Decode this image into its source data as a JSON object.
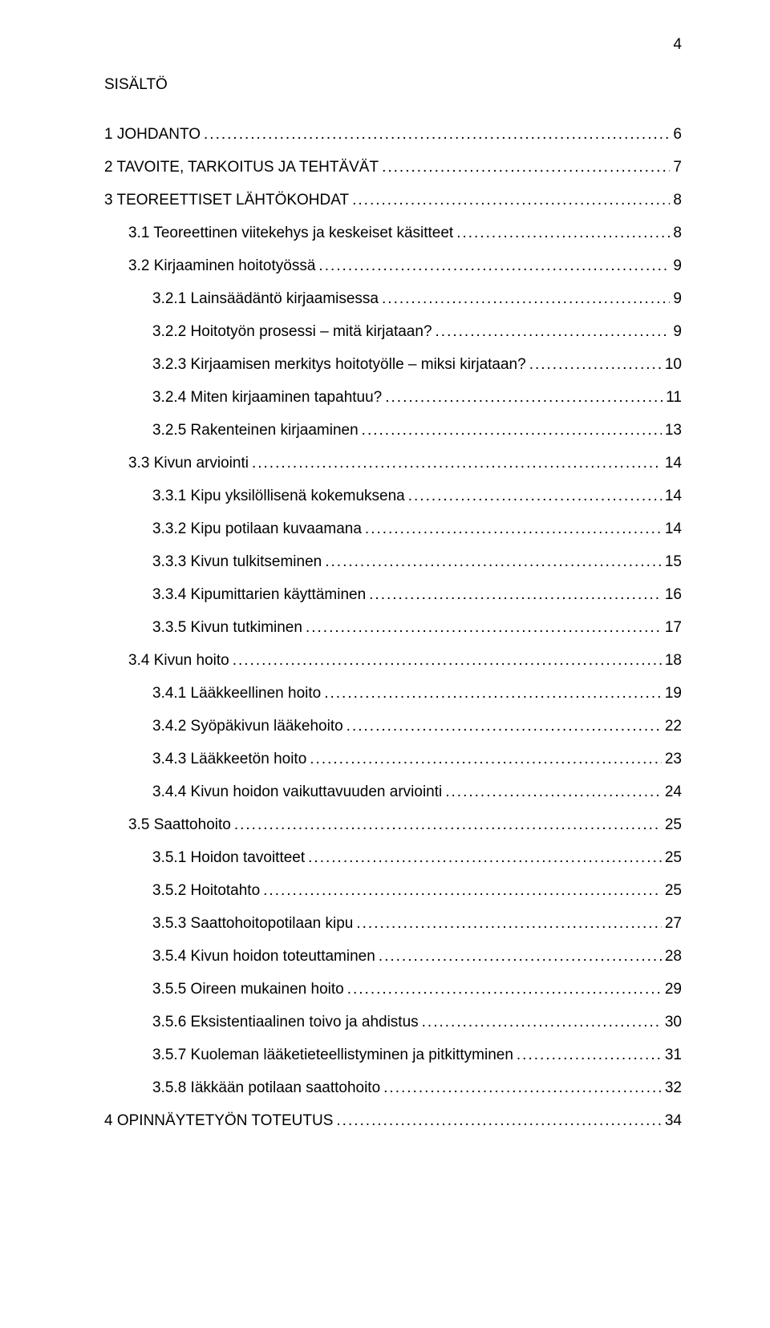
{
  "page_number": "4",
  "title": "SISÄLTÖ",
  "typography": {
    "font_family": "Arial",
    "font_size_pt": 14,
    "text_color": "#000000",
    "background_color": "#ffffff"
  },
  "toc": [
    {
      "label": "1 JOHDANTO",
      "page": "6",
      "indent": 0,
      "gap_before": true
    },
    {
      "label": "2 TAVOITE, TARKOITUS JA TEHTÄVÄT",
      "page": "7",
      "indent": 0,
      "gap_before": true
    },
    {
      "label": "3 TEOREETTISET LÄHTÖKOHDAT",
      "page": "8",
      "indent": 0,
      "gap_before": true
    },
    {
      "label": "3.1 Teoreettinen viitekehys ja keskeiset käsitteet",
      "page": "8",
      "indent": 1,
      "gap_before": false
    },
    {
      "label": "3.2 Kirjaaminen hoitotyössä",
      "page": "9",
      "indent": 1,
      "gap_before": false
    },
    {
      "label": "3.2.1 Lainsäädäntö kirjaamisessa",
      "page": "9",
      "indent": 2,
      "gap_before": false
    },
    {
      "label": "3.2.2 Hoitotyön prosessi – mitä kirjataan?",
      "page": "9",
      "indent": 2,
      "gap_before": false
    },
    {
      "label": "3.2.3 Kirjaamisen merkitys hoitotyölle – miksi kirjataan?",
      "page": "10",
      "indent": 2,
      "gap_before": false
    },
    {
      "label": "3.2.4 Miten kirjaaminen tapahtuu?",
      "page": "11",
      "indent": 2,
      "gap_before": false
    },
    {
      "label": "3.2.5 Rakenteinen kirjaaminen",
      "page": "13",
      "indent": 2,
      "gap_before": false
    },
    {
      "label": "3.3 Kivun arviointi",
      "page": "14",
      "indent": 1,
      "gap_before": false
    },
    {
      "label": "3.3.1 Kipu yksilöllisenä kokemuksena",
      "page": "14",
      "indent": 2,
      "gap_before": false
    },
    {
      "label": "3.3.2 Kipu potilaan kuvaamana",
      "page": "14",
      "indent": 2,
      "gap_before": false
    },
    {
      "label": "3.3.3 Kivun tulkitseminen",
      "page": "15",
      "indent": 2,
      "gap_before": false
    },
    {
      "label": "3.3.4 Kipumittarien käyttäminen",
      "page": "16",
      "indent": 2,
      "gap_before": false
    },
    {
      "label": "3.3.5 Kivun tutkiminen",
      "page": "17",
      "indent": 2,
      "gap_before": false
    },
    {
      "label": "3.4 Kivun hoito",
      "page": "18",
      "indent": 1,
      "gap_before": false
    },
    {
      "label": "3.4.1 Lääkkeellinen hoito",
      "page": "19",
      "indent": 2,
      "gap_before": false
    },
    {
      "label": "3.4.2 Syöpäkivun lääkehoito",
      "page": "22",
      "indent": 2,
      "gap_before": false
    },
    {
      "label": "3.4.3 Lääkkeetön hoito",
      "page": "23",
      "indent": 2,
      "gap_before": false
    },
    {
      "label": "3.4.4 Kivun hoidon vaikuttavuuden arviointi",
      "page": "24",
      "indent": 2,
      "gap_before": false
    },
    {
      "label": "3.5 Saattohoito",
      "page": "25",
      "indent": 1,
      "gap_before": false
    },
    {
      "label": "3.5.1 Hoidon tavoitteet",
      "page": "25",
      "indent": 2,
      "gap_before": false
    },
    {
      "label": "3.5.2 Hoitotahto",
      "page": "25",
      "indent": 2,
      "gap_before": false
    },
    {
      "label": "3.5.3 Saattohoitopotilaan kipu",
      "page": "27",
      "indent": 2,
      "gap_before": false
    },
    {
      "label": "3.5.4 Kivun hoidon toteuttaminen",
      "page": "28",
      "indent": 2,
      "gap_before": false
    },
    {
      "label": "3.5.5 Oireen mukainen hoito",
      "page": "29",
      "indent": 2,
      "gap_before": false
    },
    {
      "label": "3.5.6 Eksistentiaalinen toivo ja ahdistus",
      "page": "30",
      "indent": 2,
      "gap_before": false
    },
    {
      "label": "3.5.7 Kuoleman lääketieteellistyminen ja pitkittyminen",
      "page": "31",
      "indent": 2,
      "gap_before": false
    },
    {
      "label": "3.5.8 Iäkkään potilaan saattohoito",
      "page": "32",
      "indent": 2,
      "gap_before": false
    },
    {
      "label": "4 OPINNÄYTETYÖN TOTEUTUS",
      "page": "34",
      "indent": 0,
      "gap_before": false
    }
  ]
}
